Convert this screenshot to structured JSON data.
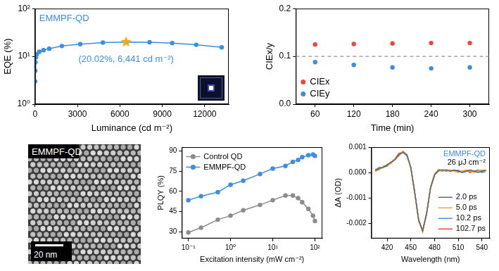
{
  "chart_data": [
    {
      "type": "line",
      "x_label": "Luminance (cd m⁻²)",
      "y_label": "EQE (%)",
      "x": [
        5,
        15,
        30,
        60,
        120,
        300,
        600,
        1000,
        1900,
        3200,
        4800,
        6441,
        8100,
        9700,
        11400,
        13200
      ],
      "series": [
        {
          "name": "EMMPF-QD",
          "color": "#3d8ee0",
          "marker": "circle",
          "values": [
            3,
            5,
            7.5,
            9.5,
            11,
            12.5,
            13.5,
            14.5,
            16.5,
            18,
            19.5,
            20.02,
            19.8,
            19,
            17.5,
            15.5
          ]
        }
      ],
      "highlight": {
        "x": 6441,
        "y": 20.02,
        "marker": "star",
        "color": "#f5a623"
      },
      "annotations": [
        "(20.02%, 6,441 cd m⁻²)"
      ],
      "log": "y",
      "grid": false,
      "legend": "upper left",
      "xlim": [
        0,
        13700
      ],
      "xticks": [
        0,
        3000,
        6000,
        9000,
        12000
      ],
      "ylim": [
        1,
        100
      ],
      "yticks": [
        {
          "value": 1,
          "label": "10⁰"
        },
        {
          "value": 10,
          "label": "10¹"
        },
        {
          "value": 100,
          "label": "10²"
        }
      ]
    },
    {
      "type": "scatter",
      "x_label": "Time (min)",
      "y_label": "CIEx/y",
      "x": [
        60,
        120,
        180,
        240,
        300
      ],
      "series": [
        {
          "name": "CIEx",
          "color": "#e8493a",
          "marker": "circle",
          "values": [
            0.125,
            0.126,
            0.127,
            0.128,
            0.128
          ]
        },
        {
          "name": "CIEy",
          "color": "#3d8ee0",
          "marker": "circle",
          "values": [
            0.088,
            0.082,
            0.077,
            0.075,
            0.077
          ]
        }
      ],
      "reference_line": {
        "y": 0.1,
        "line_style": "dashed"
      },
      "grid": false,
      "legend": "lower left",
      "xlim": [
        30,
        330
      ],
      "xticks": [
        60,
        120,
        180,
        240,
        300
      ],
      "ylim": [
        0,
        0.2
      ],
      "yticks": [
        {
          "value": 0,
          "label": "0.0"
        },
        0.1,
        0.2
      ]
    },
    {
      "type": "line",
      "x_label": "Excitation intensity (mW cm⁻²)",
      "y_label": "PLQY (%)",
      "x": [
        0.1,
        0.2,
        0.5,
        1,
        2,
        5,
        10,
        20,
        30,
        40,
        50,
        70,
        90,
        100
      ],
      "series": [
        {
          "name": "Control QD",
          "color": "#8c8c8c",
          "marker": "circle",
          "values": [
            29.5,
            33,
            39,
            42,
            46,
            50,
            53.5,
            57,
            57,
            55,
            52,
            47,
            42,
            38
          ]
        },
        {
          "name": "EMMPF-QD",
          "color": "#3d8ee0",
          "marker": "circle",
          "values": [
            53.5,
            56.5,
            59.5,
            65,
            68,
            73,
            77,
            79,
            82,
            83.5,
            85.5,
            87,
            87.5,
            86.5
          ]
        }
      ],
      "log": "x",
      "grid": false,
      "legend": "upper left",
      "xlim": [
        0.07,
        150
      ],
      "xticks": [
        {
          "value": 0.1,
          "label": "10⁻¹"
        },
        {
          "value": 1,
          "label": "10⁰"
        },
        {
          "value": 10,
          "label": "10¹"
        },
        {
          "value": 100,
          "label": "10²"
        }
      ],
      "ylim": [
        25,
        93
      ],
      "yticks": [
        30,
        45,
        60,
        75,
        90
      ]
    },
    {
      "type": "line",
      "x_label": "Wavelength (nm)",
      "y_label": "ΔA (OD)",
      "x": [
        405,
        410,
        415,
        420,
        425,
        430,
        435,
        440,
        445,
        450,
        455,
        460,
        465,
        470,
        475,
        480,
        485,
        490,
        495,
        500,
        505,
        510,
        515,
        520,
        525,
        530,
        535,
        540,
        545
      ],
      "series": [
        {
          "name": "2.0 ps",
          "color": "#666666",
          "marker": "none",
          "values": [
            0.0001,
            0.00015,
            0.0002,
            0.0003,
            0.0004,
            0.0005,
            0.0007,
            0.0008,
            0.0007,
            0.0002,
            -0.0008,
            -0.0019,
            -0.0023,
            -0.0016,
            -0.0006,
            -0.0001,
            0.0001,
            0.0001,
            0.0001,
            5e-05,
            0.0001,
            5e-05,
            0,
            5e-05,
            0.0001,
            5e-05,
            0,
            5e-05,
            0.0001
          ]
        },
        {
          "name": "5.0 ps",
          "color": "#f5a623",
          "marker": "none",
          "values": [
            5e-05,
            0.0001,
            0.00025,
            0.0003,
            0.00035,
            0.00055,
            0.00065,
            0.00085,
            0.0007,
            0.00015,
            -0.00085,
            -0.0019,
            -0.00235,
            -0.0016,
            -0.00055,
            -5e-05,
            0.0001,
            5e-05,
            0.0001,
            0.0001,
            5e-05,
            0,
            5e-05,
            0.0001,
            5e-05,
            0,
            5e-05,
            0.0001,
            5e-05
          ]
        },
        {
          "name": "10.2 ps",
          "color": "#4a90d9",
          "marker": "none",
          "values": [
            0.0001,
            0.0002,
            0.0002,
            0.00025,
            0.0004,
            0.0005,
            0.0007,
            0.0008,
            0.00065,
            0.0002,
            -0.0008,
            -0.00185,
            -0.0023,
            -0.00165,
            -0.0006,
            -0.0001,
            5e-05,
            0.0001,
            5e-05,
            0.0001,
            5e-05,
            0.0001,
            0,
            5e-05,
            0.0001,
            5e-05,
            0.0001,
            0,
            5e-05
          ]
        },
        {
          "name": "102.7 ps",
          "color": "#e8473a",
          "marker": "none",
          "values": [
            5e-05,
            0.00015,
            0.0002,
            0.0003,
            0.0004,
            0.00055,
            0.00075,
            0.0008,
            0.0007,
            0.0002,
            -0.0008,
            -0.0019,
            -0.0023,
            -0.0016,
            -0.0006,
            -0.0001,
            0.0001,
            5e-05,
            0.0001,
            5e-05,
            0.0001,
            5e-05,
            5e-05,
            0.0001,
            0,
            5e-05,
            0.0001,
            5e-05,
            0.0001
          ]
        }
      ],
      "annotations": [
        "EMMPF-QD",
        "26 μJ cm⁻²"
      ],
      "grid": false,
      "legend": "lower right",
      "xlim": [
        400,
        550
      ],
      "xticks": [
        420,
        450,
        480,
        510,
        540
      ],
      "ylim": [
        -0.0026,
        0.001
      ],
      "yticks": [
        -0.002,
        -0.001,
        {
          "value": 0,
          "label": "0.000"
        },
        0.001
      ]
    }
  ],
  "image_panel": {
    "label": "EMMPF-QD",
    "scale_bar": "20 nm"
  }
}
